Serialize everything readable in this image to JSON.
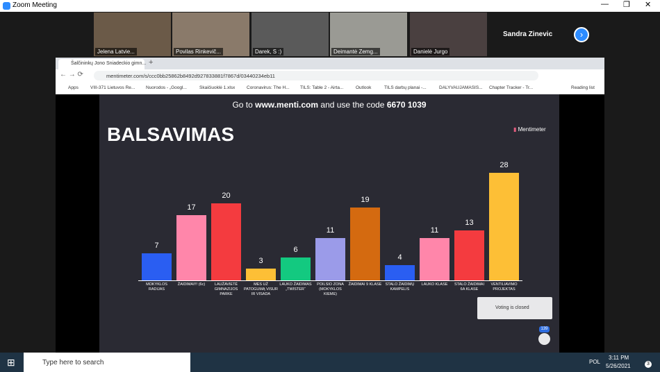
{
  "window": {
    "title": "Zoom Meeting"
  },
  "participants": [
    "Jelena Latvie...",
    "Povilas Rinkevič...",
    "Darek, S :)",
    "Deimantė Zemg...",
    "Danielė Jurgo",
    "Sandra Zinevic"
  ],
  "browser": {
    "tab_title": "Šalčininkų Jono Sniadeckio gimn...",
    "url": "mentimeter.com/s/ccc0bb25862b8492d927833881f7867d/03440234eb11",
    "bookmarks": [
      "Apps",
      "VIII-371 Lietuvos Re...",
      "Nuorodos - „Googl...",
      "Skaičiuoklė 1.xlsx",
      "Coronavirus: The H...",
      "TILS: Table 2 - Airta...",
      "Outlook",
      "TILS darbų planai -...",
      "DALYVAUJAMASIS...",
      "Chapter Tracker - Tr..."
    ],
    "reading_list": "Reading list"
  },
  "banner": {
    "prefix": "Go to",
    "site": "www.menti.com",
    "middle": "and use the code",
    "code": "6670 1039"
  },
  "logo": "Mentimeter",
  "chart_data": {
    "type": "bar",
    "title": "BALSAVIMAS",
    "categories": [
      "MOKYKLOS RADIJAS",
      "ŽAIDIMAI!!! (6c)",
      "LAUŽAVIETĖ GIMNAZIJOS PARKE",
      "MES UŽ PATOGUMĄ VISUR IR VISADA",
      "LAUKO ŽAIDIMAS „TWISTER“",
      "POILSIO ZONA (MOKYKLOS KIEME)",
      "ŽAIDIMAI 9 KLASE",
      "STALO ŽAIDIMŲ KAMPELIS",
      "LAUKO KLASE",
      "STALO ŽAIDIMAI 6A KLASE",
      "VENTILIAVIMO PROJEKTAS"
    ],
    "values": [
      7,
      17,
      20,
      3,
      6,
      11,
      19,
      4,
      11,
      13,
      28
    ],
    "colors": [
      "#2a5ef2",
      "#ff86aa",
      "#f43b3f",
      "#fdbf36",
      "#13c980",
      "#9b9be9",
      "#d46a10",
      "#2a5ef2",
      "#ff86aa",
      "#f43b3f",
      "#fdbf36"
    ]
  },
  "status": {
    "voting": "Voting is closed",
    "audience": "139"
  },
  "taskbar": {
    "search": "Type here to search",
    "language": "POL",
    "time": "3:11 PM",
    "date": "5/26/2021",
    "notifications": "3"
  }
}
